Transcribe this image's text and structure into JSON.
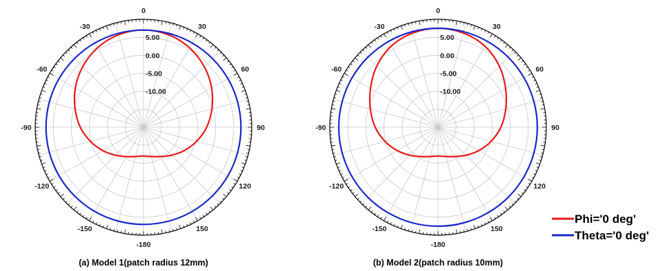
{
  "colors": {
    "phi": "#e8191a",
    "theta": "#1a27c8",
    "grid": "#c8c8c8",
    "frame": "#000000"
  },
  "legend": {
    "placement": "bottom-right",
    "entries": [
      "Phi='0 deg'",
      "Theta='0 deg'"
    ]
  },
  "chart_data": [
    {
      "type": "polar",
      "caption": "(a) Model 1(patch radius 12mm)",
      "angle_ticks": [
        "0",
        "30",
        "60",
        "90",
        "120",
        "150",
        "-180",
        "-150",
        "-120",
        "-90",
        "-60",
        "-30"
      ],
      "radial_ticks": [
        "5.00",
        "0.00",
        "-5.00",
        "-10.00"
      ],
      "radial_values": [
        5,
        0,
        -5,
        -10
      ],
      "rlim": [
        -20,
        10
      ],
      "grid": true,
      "angles_deg": [
        0,
        15,
        30,
        45,
        60,
        75,
        90,
        105,
        120,
        135,
        150,
        165,
        180,
        -165,
        -150,
        -135,
        -120,
        -105,
        -90,
        -75,
        -60,
        -45,
        -30,
        -15
      ],
      "series": [
        {
          "name": "Phi='0 deg'",
          "values": [
            7.0,
            6.6,
            5.5,
            3.8,
            1.8,
            -0.4,
            -2.5,
            -4.8,
            -7.0,
            -9.0,
            -10.6,
            -11.6,
            -12.0,
            -11.6,
            -10.6,
            -9.0,
            -7.0,
            -4.8,
            -2.5,
            -0.4,
            1.8,
            3.8,
            5.5,
            6.6
          ]
        },
        {
          "name": "Theta='0 deg'",
          "values": [
            7.0,
            7.0,
            7.0,
            7.0,
            7.0,
            7.0,
            7.0,
            7.0,
            7.0,
            7.0,
            7.0,
            7.0,
            7.0,
            7.0,
            7.0,
            7.0,
            7.0,
            7.0,
            7.0,
            7.0,
            7.0,
            7.0,
            7.0,
            7.0
          ]
        }
      ]
    },
    {
      "type": "polar",
      "caption": "(b) Model 2(patch radius 10mm)",
      "angle_ticks": [
        "0",
        "30",
        "60",
        "90",
        "120",
        "150",
        "-180",
        "-150",
        "-120",
        "-90",
        "-60",
        "-30"
      ],
      "radial_ticks": [
        "5.00",
        "0.00",
        "-5.00",
        "-10.00"
      ],
      "radial_values": [
        5,
        0,
        -5,
        -10
      ],
      "rlim": [
        -20,
        10
      ],
      "grid": true,
      "angles_deg": [
        0,
        15,
        30,
        45,
        60,
        75,
        90,
        105,
        120,
        135,
        150,
        165,
        180,
        -165,
        -150,
        -135,
        -120,
        -105,
        -90,
        -75,
        -60,
        -45,
        -30,
        -15
      ],
      "series": [
        {
          "name": "Phi='0 deg'",
          "values": [
            7.5,
            7.1,
            6.0,
            4.0,
            1.6,
            -0.6,
            -2.6,
            -4.8,
            -7.0,
            -9.0,
            -10.6,
            -11.6,
            -12.0,
            -11.6,
            -10.6,
            -9.0,
            -7.0,
            -4.8,
            -2.6,
            -0.6,
            1.6,
            4.0,
            6.0,
            7.1
          ]
        },
        {
          "name": "Theta='0 deg'",
          "values": [
            7.5,
            7.5,
            7.5,
            7.5,
            7.5,
            7.5,
            7.5,
            7.5,
            7.5,
            7.5,
            7.5,
            7.5,
            7.5,
            7.5,
            7.5,
            7.5,
            7.5,
            7.5,
            7.5,
            7.5,
            7.5,
            7.5,
            7.5,
            7.5
          ]
        }
      ]
    }
  ]
}
